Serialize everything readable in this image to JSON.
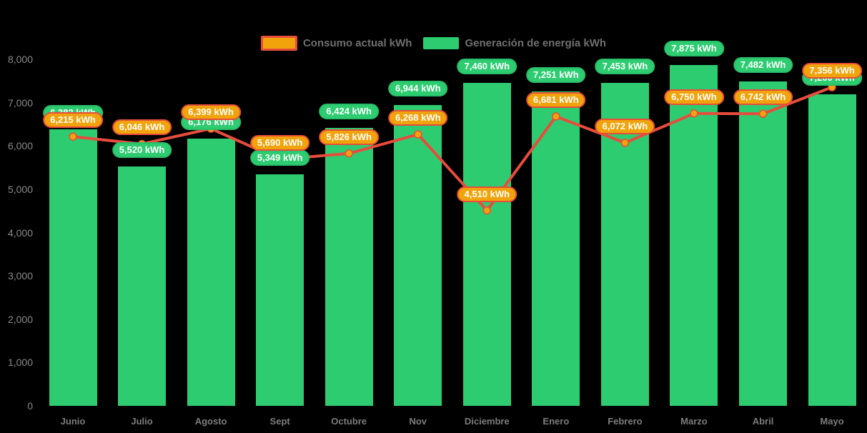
{
  "legend": {
    "items": [
      {
        "label": "Consumo actual kWh",
        "swatch_color": "#f0a30a",
        "swatch_border": "#e74c3c"
      },
      {
        "label": "Generación de energía kWh",
        "swatch_color": "#2ecc71",
        "swatch_border": "#2ecc71"
      }
    ]
  },
  "colors": {
    "background": "#000000",
    "bar": "#2ecc71",
    "line": "#e74c3c",
    "marker_fill": "#f0a30a",
    "marker_border": "#e74c3c",
    "generation_pill_bg": "#2ecc71",
    "generation_pill_border": "#29bd68",
    "consumption_pill_bg": "#f0a30a",
    "consumption_pill_border": "#e74c3c",
    "axis_text": "#8a8a8a",
    "pill_text": "#ffffff"
  },
  "chart_data": {
    "type": "bar+line",
    "title": "",
    "xlabel": "",
    "ylabel": "",
    "categories": [
      "Junio",
      "Julio",
      "Agosto",
      "Sept",
      "Octubre",
      "Nov",
      "Diciembre",
      "Enero",
      "Febrero",
      "Marzo",
      "Abril",
      "Mayo"
    ],
    "series": [
      {
        "name": "Generación de energía kWh",
        "type": "bar",
        "color": "#2ecc71",
        "values": [
          6382,
          5520,
          6176,
          5349,
          6424,
          6944,
          7460,
          7251,
          7453,
          7875,
          7482,
          7200
        ],
        "value_labels": [
          "6,382 kWh",
          "5,520 kWh",
          "6,176 kWh",
          "5,349 kWh",
          "6,424 kWh",
          "6,944 kWh",
          "7,460 kWh",
          "7,251 kWh",
          "7,453 kWh",
          "7,875 kWh",
          "7,482 kWh",
          "7,200 kWh"
        ]
      },
      {
        "name": "Consumo actual kWh",
        "type": "line",
        "color": "#e74c3c",
        "marker_color": "#f0a30a",
        "values": [
          6215,
          6046,
          6399,
          5690,
          5826,
          6268,
          4510,
          6681,
          6072,
          6750,
          6742,
          7356
        ],
        "value_labels": [
          "6,215 kWh",
          "6,046 kWh",
          "6,399 kWh",
          "5,690 kWh",
          "5,826 kWh",
          "6,268 kWh",
          "4,510 kWh",
          "6,681 kWh",
          "6,072 kWh",
          "6,750 kWh",
          "6,742 kWh",
          "7,356 kWh"
        ]
      }
    ],
    "ylim": [
      0,
      8000
    ],
    "ytick_values": [
      8000,
      7000,
      6000,
      5000,
      4000,
      3000,
      2000,
      1000,
      0
    ],
    "ytick_labels": [
      "8,000",
      "7,000",
      "6,000",
      "5,000",
      "4,000",
      "3,000",
      "2,000",
      "1,000",
      "0"
    ],
    "grid": false,
    "legend_position": "top"
  }
}
